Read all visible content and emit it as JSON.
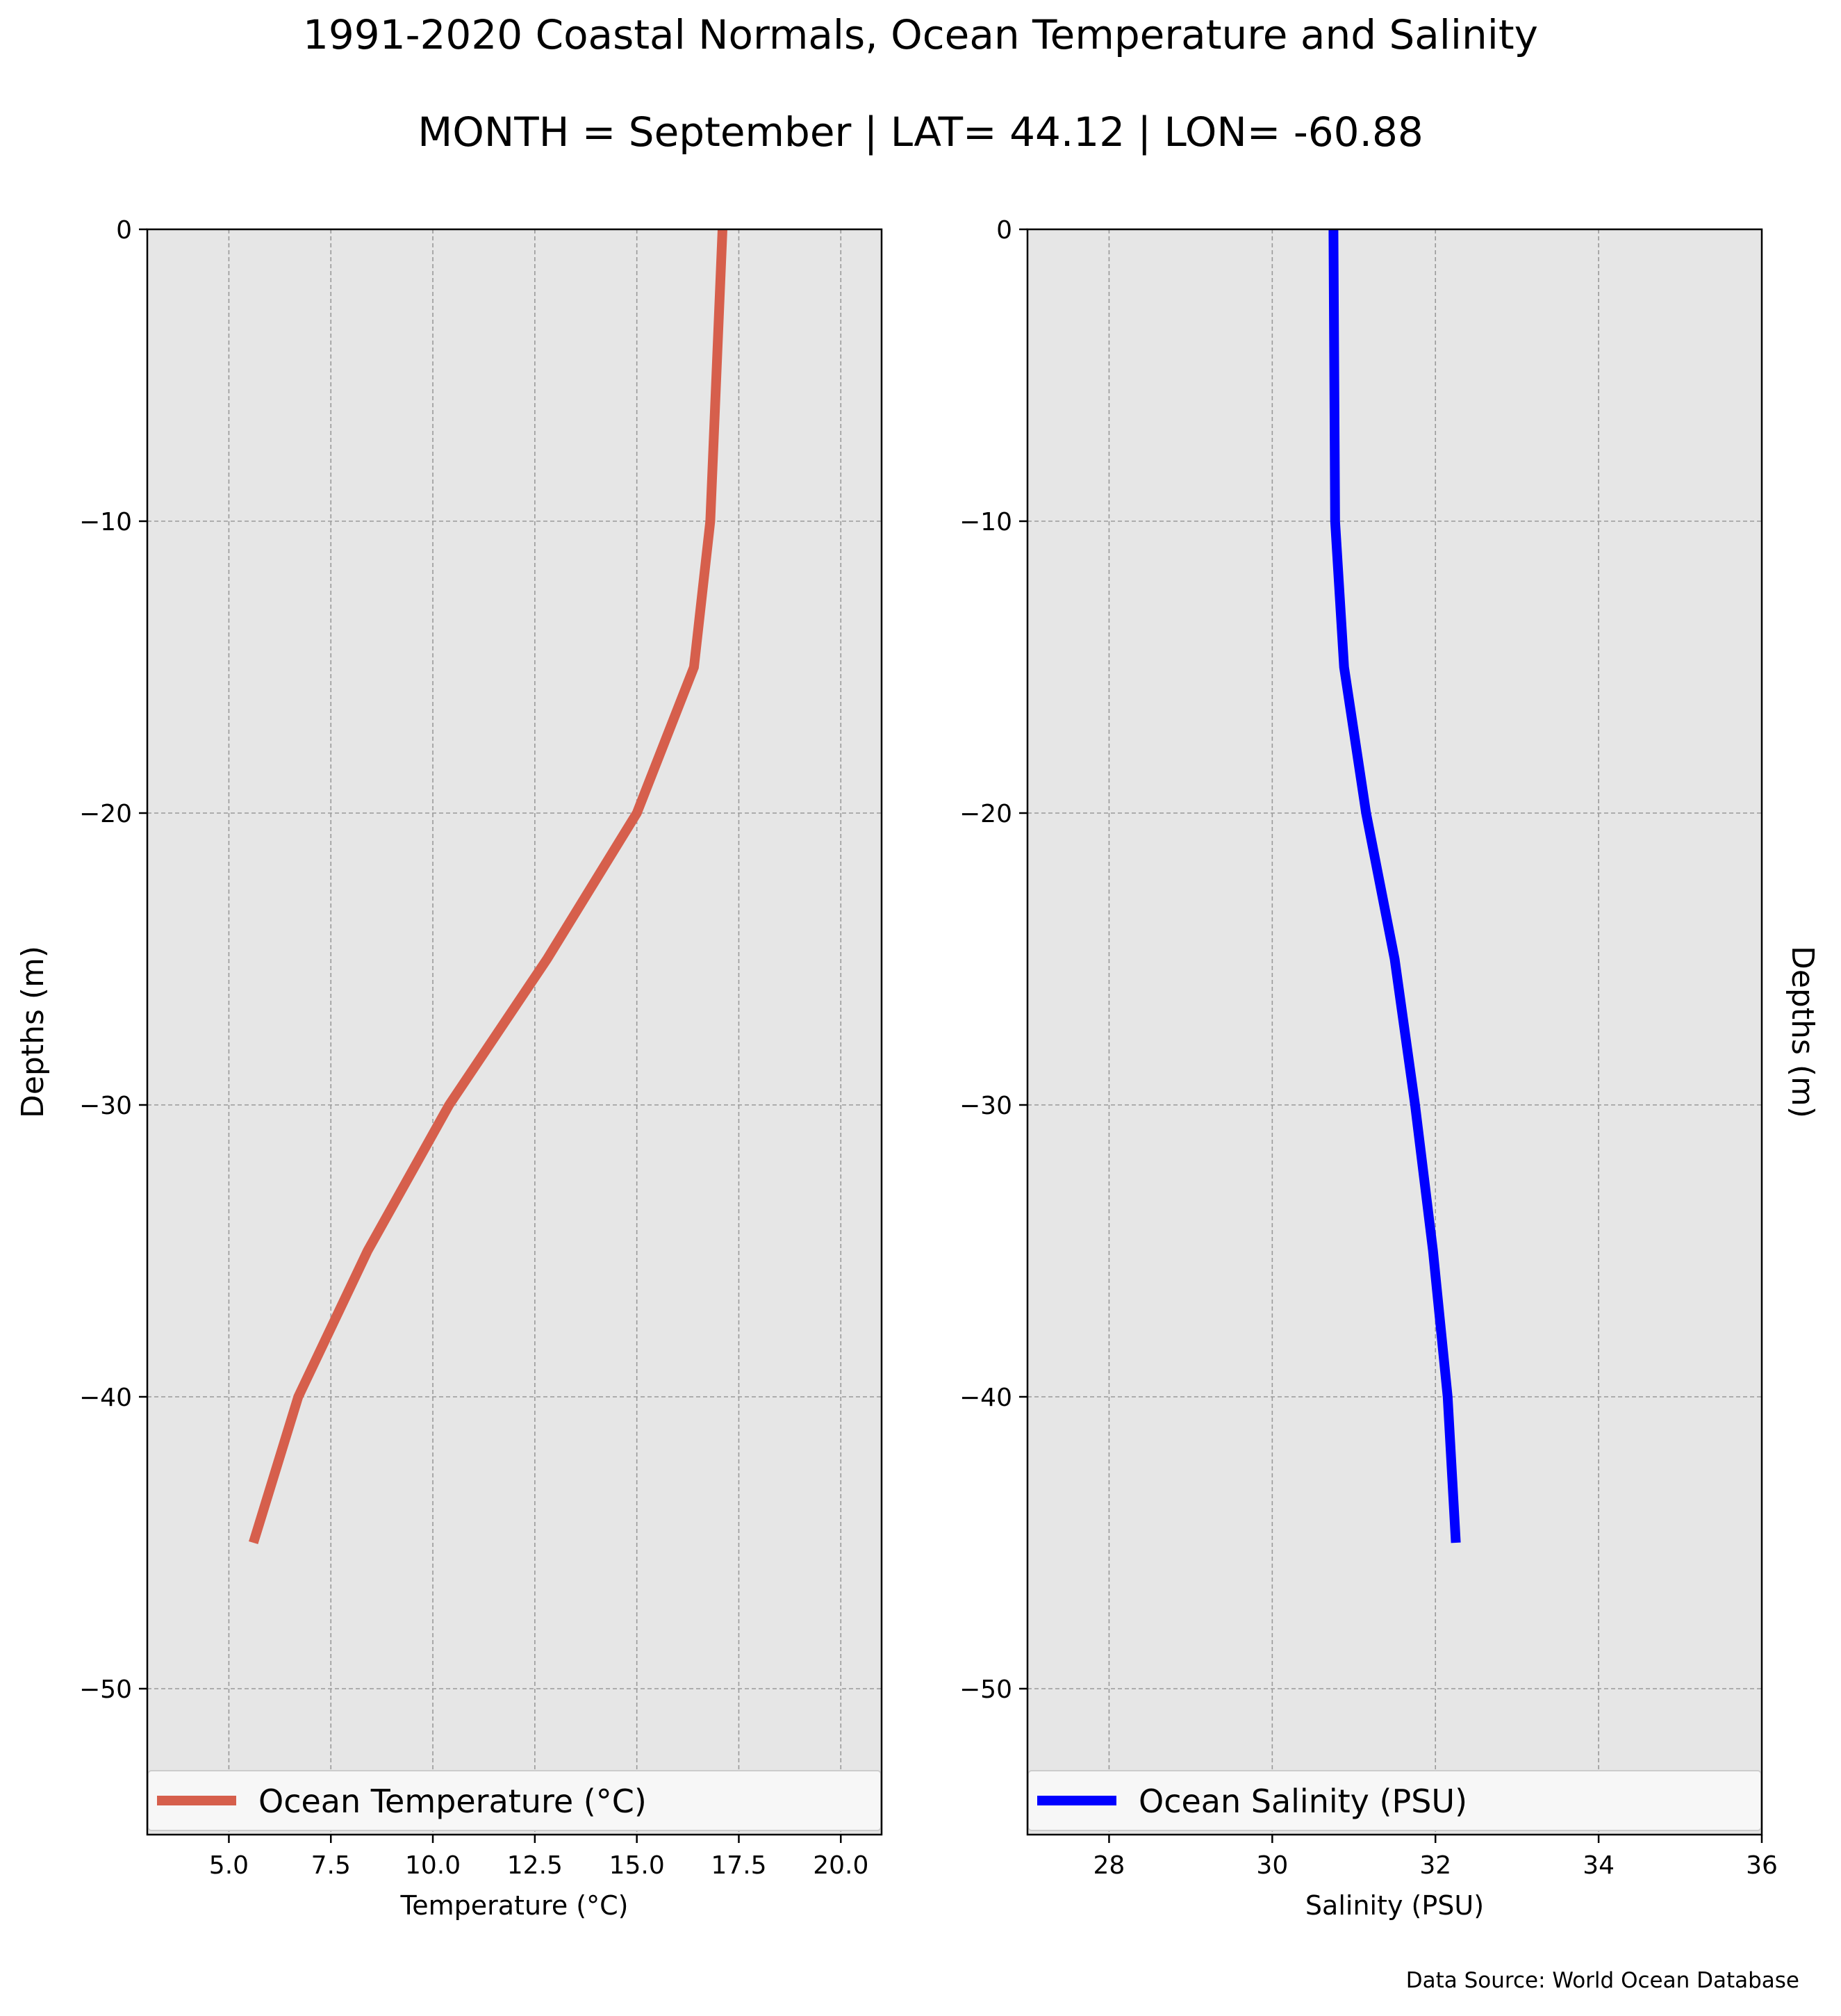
{
  "figure": {
    "title_line1": "1991-2020 Coastal Normals, Ocean Temperature and Salinity",
    "title_line2": "MONTH = September | LAT= 44.12 | LON= -60.88",
    "source": "Data Source: World Ocean Database"
  },
  "chart_data": [
    {
      "type": "line",
      "title": "",
      "xlabel": "Temperature (°C)",
      "ylabel": "Depths (m)",
      "ylabel_side": "left",
      "xlim": [
        3.0,
        21.0
      ],
      "ylim": [
        -55,
        0
      ],
      "xticks": [
        5.0,
        7.5,
        10.0,
        12.5,
        15.0,
        17.5,
        20.0
      ],
      "xtick_labels": [
        "5.0",
        "7.5",
        "10.0",
        "12.5",
        "15.0",
        "17.5",
        "20.0"
      ],
      "yticks": [
        0,
        -10,
        -20,
        -30,
        -40,
        -50
      ],
      "ytick_labels": [
        "0",
        "−10",
        "−20",
        "−30",
        "−40",
        "−50"
      ],
      "grid": true,
      "background": "#e6e6e6",
      "legend_position": "bottom",
      "series": [
        {
          "name": "Ocean Temperature (°C)",
          "color": "#d65f4c",
          "x": [
            17.1,
            16.8,
            16.4,
            15.0,
            12.8,
            10.4,
            8.4,
            6.7,
            5.6
          ],
          "y": [
            0,
            -10,
            -15,
            -20,
            -25,
            -30,
            -35,
            -40,
            -45
          ]
        }
      ]
    },
    {
      "type": "line",
      "title": "",
      "xlabel": "Salinity (PSU)",
      "ylabel": "Depths (m)",
      "ylabel_side": "right",
      "xlim": [
        27,
        36
      ],
      "ylim": [
        -55,
        0
      ],
      "xticks": [
        28,
        30,
        32,
        34,
        36
      ],
      "xtick_labels": [
        "28",
        "30",
        "32",
        "34",
        "36"
      ],
      "yticks": [
        0,
        -10,
        -20,
        -30,
        -40,
        -50
      ],
      "ytick_labels": [
        "0",
        "−10",
        "−20",
        "−30",
        "−40",
        "−50"
      ],
      "grid": true,
      "background": "#e6e6e6",
      "legend_position": "bottom",
      "series": [
        {
          "name": "Ocean Salinity (PSU)",
          "color": "#0000ff",
          "x": [
            30.75,
            30.77,
            30.88,
            31.15,
            31.5,
            31.75,
            31.97,
            32.15,
            32.25
          ],
          "y": [
            0,
            -10,
            -15,
            -20,
            -25,
            -30,
            -35,
            -40,
            -45
          ]
        }
      ]
    }
  ]
}
